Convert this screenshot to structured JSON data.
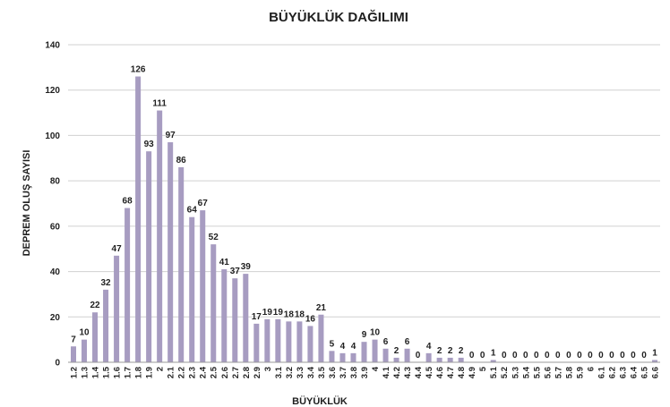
{
  "chart_data": {
    "type": "bar",
    "title": "BÜYÜKLÜK DAĞILIMI",
    "xlabel": "BÜYÜKLÜK",
    "ylabel": "DEPREM OLUŞ SAYISI",
    "ylim": [
      0,
      140
    ],
    "yticks": [
      "0",
      "20",
      "40",
      "60",
      "80",
      "100",
      "120",
      "140"
    ],
    "grid": "horizontal",
    "legend": "none",
    "bar_color": "#A79CC1",
    "categories": [
      "1.2",
      "1.3",
      "1.4",
      "1.5",
      "1.6",
      "1.7",
      "1.8",
      "1.9",
      "2",
      "2.1",
      "2.2",
      "2.3",
      "2.4",
      "2.5",
      "2.6",
      "2.7",
      "2.8",
      "2.9",
      "3",
      "3.1",
      "3.2",
      "3.3",
      "3.4",
      "3.5",
      "3.6",
      "3.7",
      "3.8",
      "3.9",
      "4",
      "4.1",
      "4.2",
      "4.3",
      "4.4",
      "4.5",
      "4.6",
      "4.7",
      "4.8",
      "4.9",
      "5",
      "5.1",
      "5.2",
      "5.3",
      "5.4",
      "5.5",
      "5.6",
      "5.7",
      "5.8",
      "5.9",
      "6",
      "6.1",
      "6.2",
      "6.3",
      "6.4",
      "6.5",
      "6.6"
    ],
    "values": [
      7,
      10,
      22,
      32,
      47,
      68,
      126,
      93,
      111,
      97,
      86,
      64,
      67,
      52,
      41,
      37,
      39,
      17,
      19,
      19,
      18,
      18,
      16,
      21,
      5,
      4,
      4,
      9,
      10,
      6,
      2,
      6,
      0,
      4,
      2,
      2,
      2,
      0,
      0,
      1,
      0,
      0,
      0,
      0,
      0,
      0,
      0,
      0,
      0,
      0,
      0,
      0,
      0,
      0,
      1
    ]
  }
}
